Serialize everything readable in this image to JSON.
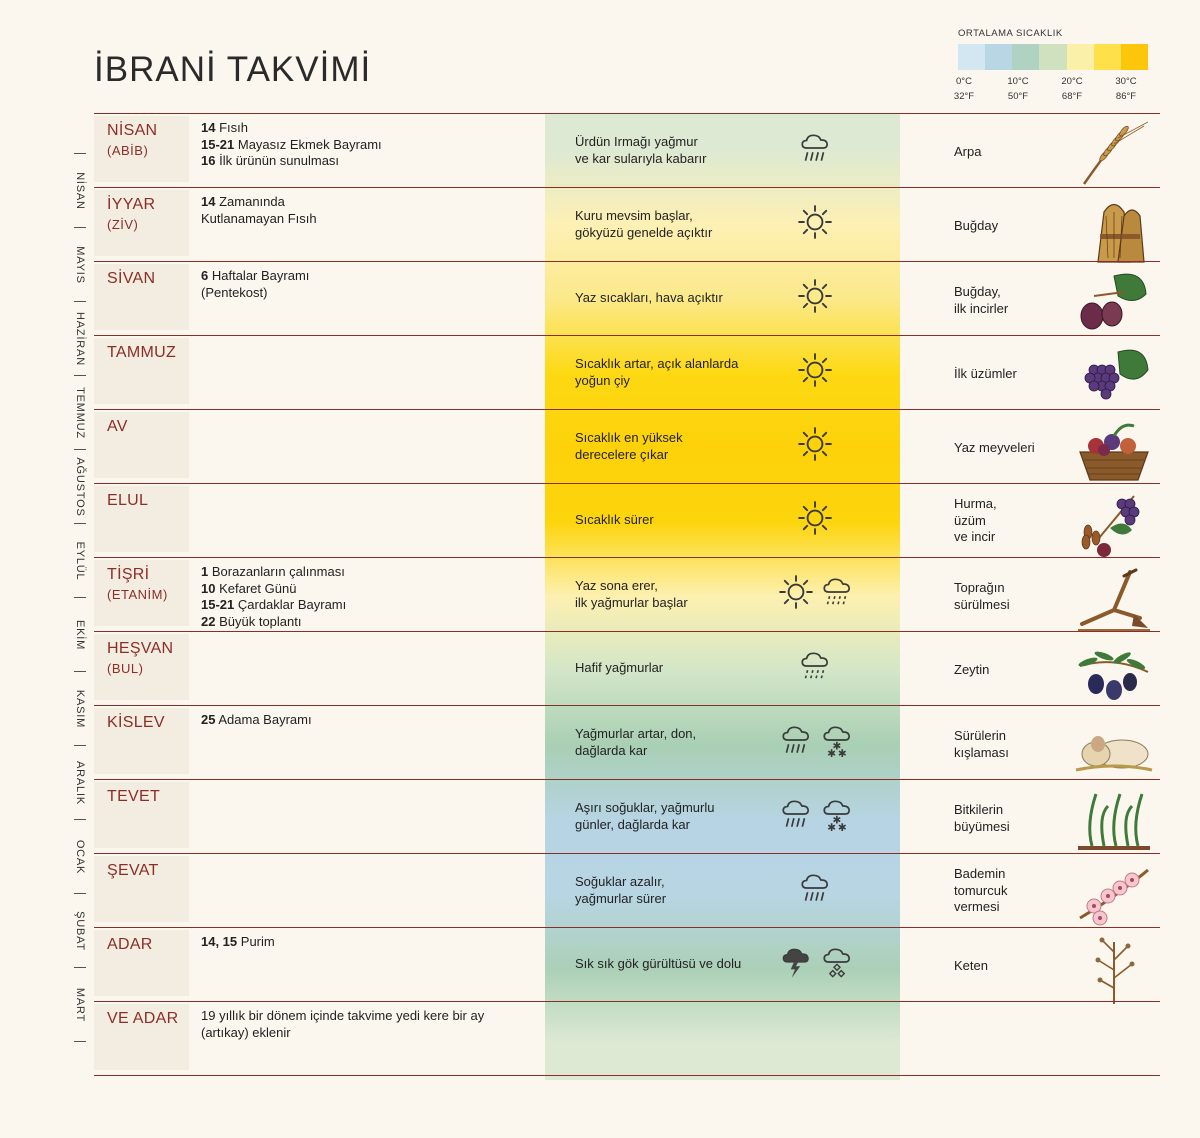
{
  "title": "İBRANİ TAKVİMİ",
  "legend": {
    "title": "ORTALAMA SICAKLIK",
    "colors": [
      "#d3e7f3",
      "#b8d6e3",
      "#b0d2c2",
      "#cfe1bf",
      "#fbf0a9",
      "#fde04a",
      "#fcc60b"
    ],
    "ticks": [
      {
        "c": "0°C",
        "f": "32°F"
      },
      {
        "c": "10°C",
        "f": "50°F"
      },
      {
        "c": "20°C",
        "f": "68°F"
      },
      {
        "c": "30°C",
        "f": "86°F"
      }
    ]
  },
  "side_months": [
    "NİSAN",
    "MAYIS",
    "HAZİRAN",
    "TEMMUZ",
    "AĞUSTOS",
    "EYLÜL",
    "EKİM",
    "KASIM",
    "ARALIK",
    "OCAK",
    "ŞUBAT",
    "MART"
  ],
  "months": [
    {
      "name": "NİSAN",
      "alt": "(ABİB)",
      "temp_color": "#dde9d3",
      "festivals": [
        {
          "day": "14",
          "text": "Fısıh"
        },
        {
          "day": "15-21",
          "text": "Mayasız Ekmek Bayramı"
        },
        {
          "day": "16",
          "text": "İlk ürünün sunulması"
        }
      ],
      "climate": [
        "Ürdün Irmağı yağmur",
        "ve kar sularıyla kabarır"
      ],
      "weather": [
        "rain"
      ],
      "crop": [
        "Arpa"
      ],
      "crop_icon": "barley-icon"
    },
    {
      "name": "İYYAR",
      "alt": "(ZİV)",
      "temp_color": "#fdf0b4",
      "festivals": [
        {
          "day": "14",
          "text": "Zamanında"
        },
        {
          "day": "",
          "text": "Kutlanamayan Fısıh"
        }
      ],
      "climate": [
        "Kuru mevsim başlar,",
        "gökyüzü genelde açıktır"
      ],
      "weather": [
        "sun"
      ],
      "crop": [
        "Buğday"
      ],
      "crop_icon": "wheat-sheaf-icon"
    },
    {
      "name": "SİVAN",
      "alt": "",
      "temp_color": "#fbe98a",
      "festivals": [
        {
          "day": "6",
          "text": "Haftalar Bayramı"
        },
        {
          "day": "",
          "text": "(Pentekost)"
        }
      ],
      "climate": [
        "Yaz sıcakları, hava açıktır"
      ],
      "weather": [
        "sun"
      ],
      "crop": [
        "Buğday,",
        "ilk incirler"
      ],
      "crop_icon": "fig-icon"
    },
    {
      "name": "TAMMUZ",
      "alt": "",
      "temp_color": "#fdd913",
      "festivals": [],
      "climate": [
        "Sıcaklık artar, açık alanlarda",
        "yoğun çiy"
      ],
      "weather": [
        "sun"
      ],
      "crop": [
        "İlk üzümler"
      ],
      "crop_icon": "grapes-icon"
    },
    {
      "name": "AV",
      "alt": "",
      "temp_color": "#fdd20a",
      "festivals": [],
      "climate": [
        "Sıcaklık en yüksek",
        "derecelere çıkar"
      ],
      "weather": [
        "sun"
      ],
      "crop": [
        "Yaz meyveleri"
      ],
      "crop_icon": "fruit-basket-icon"
    },
    {
      "name": "ELUL",
      "alt": "",
      "temp_color": "#fdd50d",
      "festivals": [],
      "climate": [
        "Sıcaklık sürer"
      ],
      "weather": [
        "sun"
      ],
      "crop": [
        "Hurma,",
        "üzüm",
        "ve incir"
      ],
      "crop_icon": "dates-grapes-icon"
    },
    {
      "name": "TİŞRİ",
      "alt": "(ETANİM)",
      "temp_color": "#fdf0b0",
      "festivals": [
        {
          "day": "1",
          "text": "Borazanların çalınması"
        },
        {
          "day": "10",
          "text": "Kefaret Günü"
        },
        {
          "day": "15-21",
          "text": "Çardaklar Bayramı"
        },
        {
          "day": "22",
          "text": "Büyük toplantı"
        }
      ],
      "climate": [
        "Yaz sona erer,",
        "ilk yağmurlar başlar"
      ],
      "weather": [
        "sun",
        "drizzle"
      ],
      "crop": [
        "Toprağın",
        "sürülmesi"
      ],
      "crop_icon": "plow-icon"
    },
    {
      "name": "HEŞVAN",
      "alt": "(BUL)",
      "temp_color": "#d3e6c8",
      "festivals": [],
      "climate": [
        "Hafif yağmurlar"
      ],
      "weather": [
        "drizzle"
      ],
      "crop": [
        "Zeytin"
      ],
      "crop_icon": "olive-icon"
    },
    {
      "name": "KİSLEV",
      "alt": "",
      "temp_color": "#a9cfb4",
      "festivals": [
        {
          "day": "25",
          "text": "Adama Bayramı"
        }
      ],
      "climate": [
        "Yağmurlar artar, don,",
        "dağlarda kar"
      ],
      "weather": [
        "rain",
        "snow"
      ],
      "crop": [
        "Sürülerin",
        "kışlaması"
      ],
      "crop_icon": "sheep-icon"
    },
    {
      "name": "TEVET",
      "alt": "",
      "temp_color": "#b6d4e3",
      "festivals": [],
      "climate": [
        "Aşırı soğuklar, yağmurlu",
        "günler, dağlarda kar"
      ],
      "weather": [
        "rain",
        "snow"
      ],
      "crop": [
        "Bitkilerin",
        "büyümesi"
      ],
      "crop_icon": "sprout-icon"
    },
    {
      "name": "ŞEVAT",
      "alt": "",
      "temp_color": "#b8d5e4",
      "festivals": [],
      "climate": [
        "Soğuklar azalır,",
        "yağmurlar sürer"
      ],
      "weather": [
        "rain"
      ],
      "crop": [
        "Bademin",
        "tomurcuk",
        "vermesi"
      ],
      "crop_icon": "almond-blossom-icon"
    },
    {
      "name": "ADAR",
      "alt": "",
      "temp_color": "#abd0b7",
      "festivals": [
        {
          "day": "14, 15",
          "text": "Purim"
        }
      ],
      "climate": [
        "Sık sık gök gürültüsü ve dolu"
      ],
      "weather": [
        "thunder",
        "hail"
      ],
      "crop": [
        "Keten"
      ],
      "crop_icon": "flax-icon"
    },
    {
      "name": "VE ADAR",
      "alt": "",
      "temp_color": "#dde9d3",
      "festivals": [
        {
          "day": "",
          "text": "19 yıllık bir dönem içinde takvime yedi kere bir ay"
        },
        {
          "day": "",
          "text": "(artıkay) eklenir"
        }
      ],
      "climate": [],
      "weather": [],
      "crop": [],
      "crop_icon": ""
    }
  ]
}
